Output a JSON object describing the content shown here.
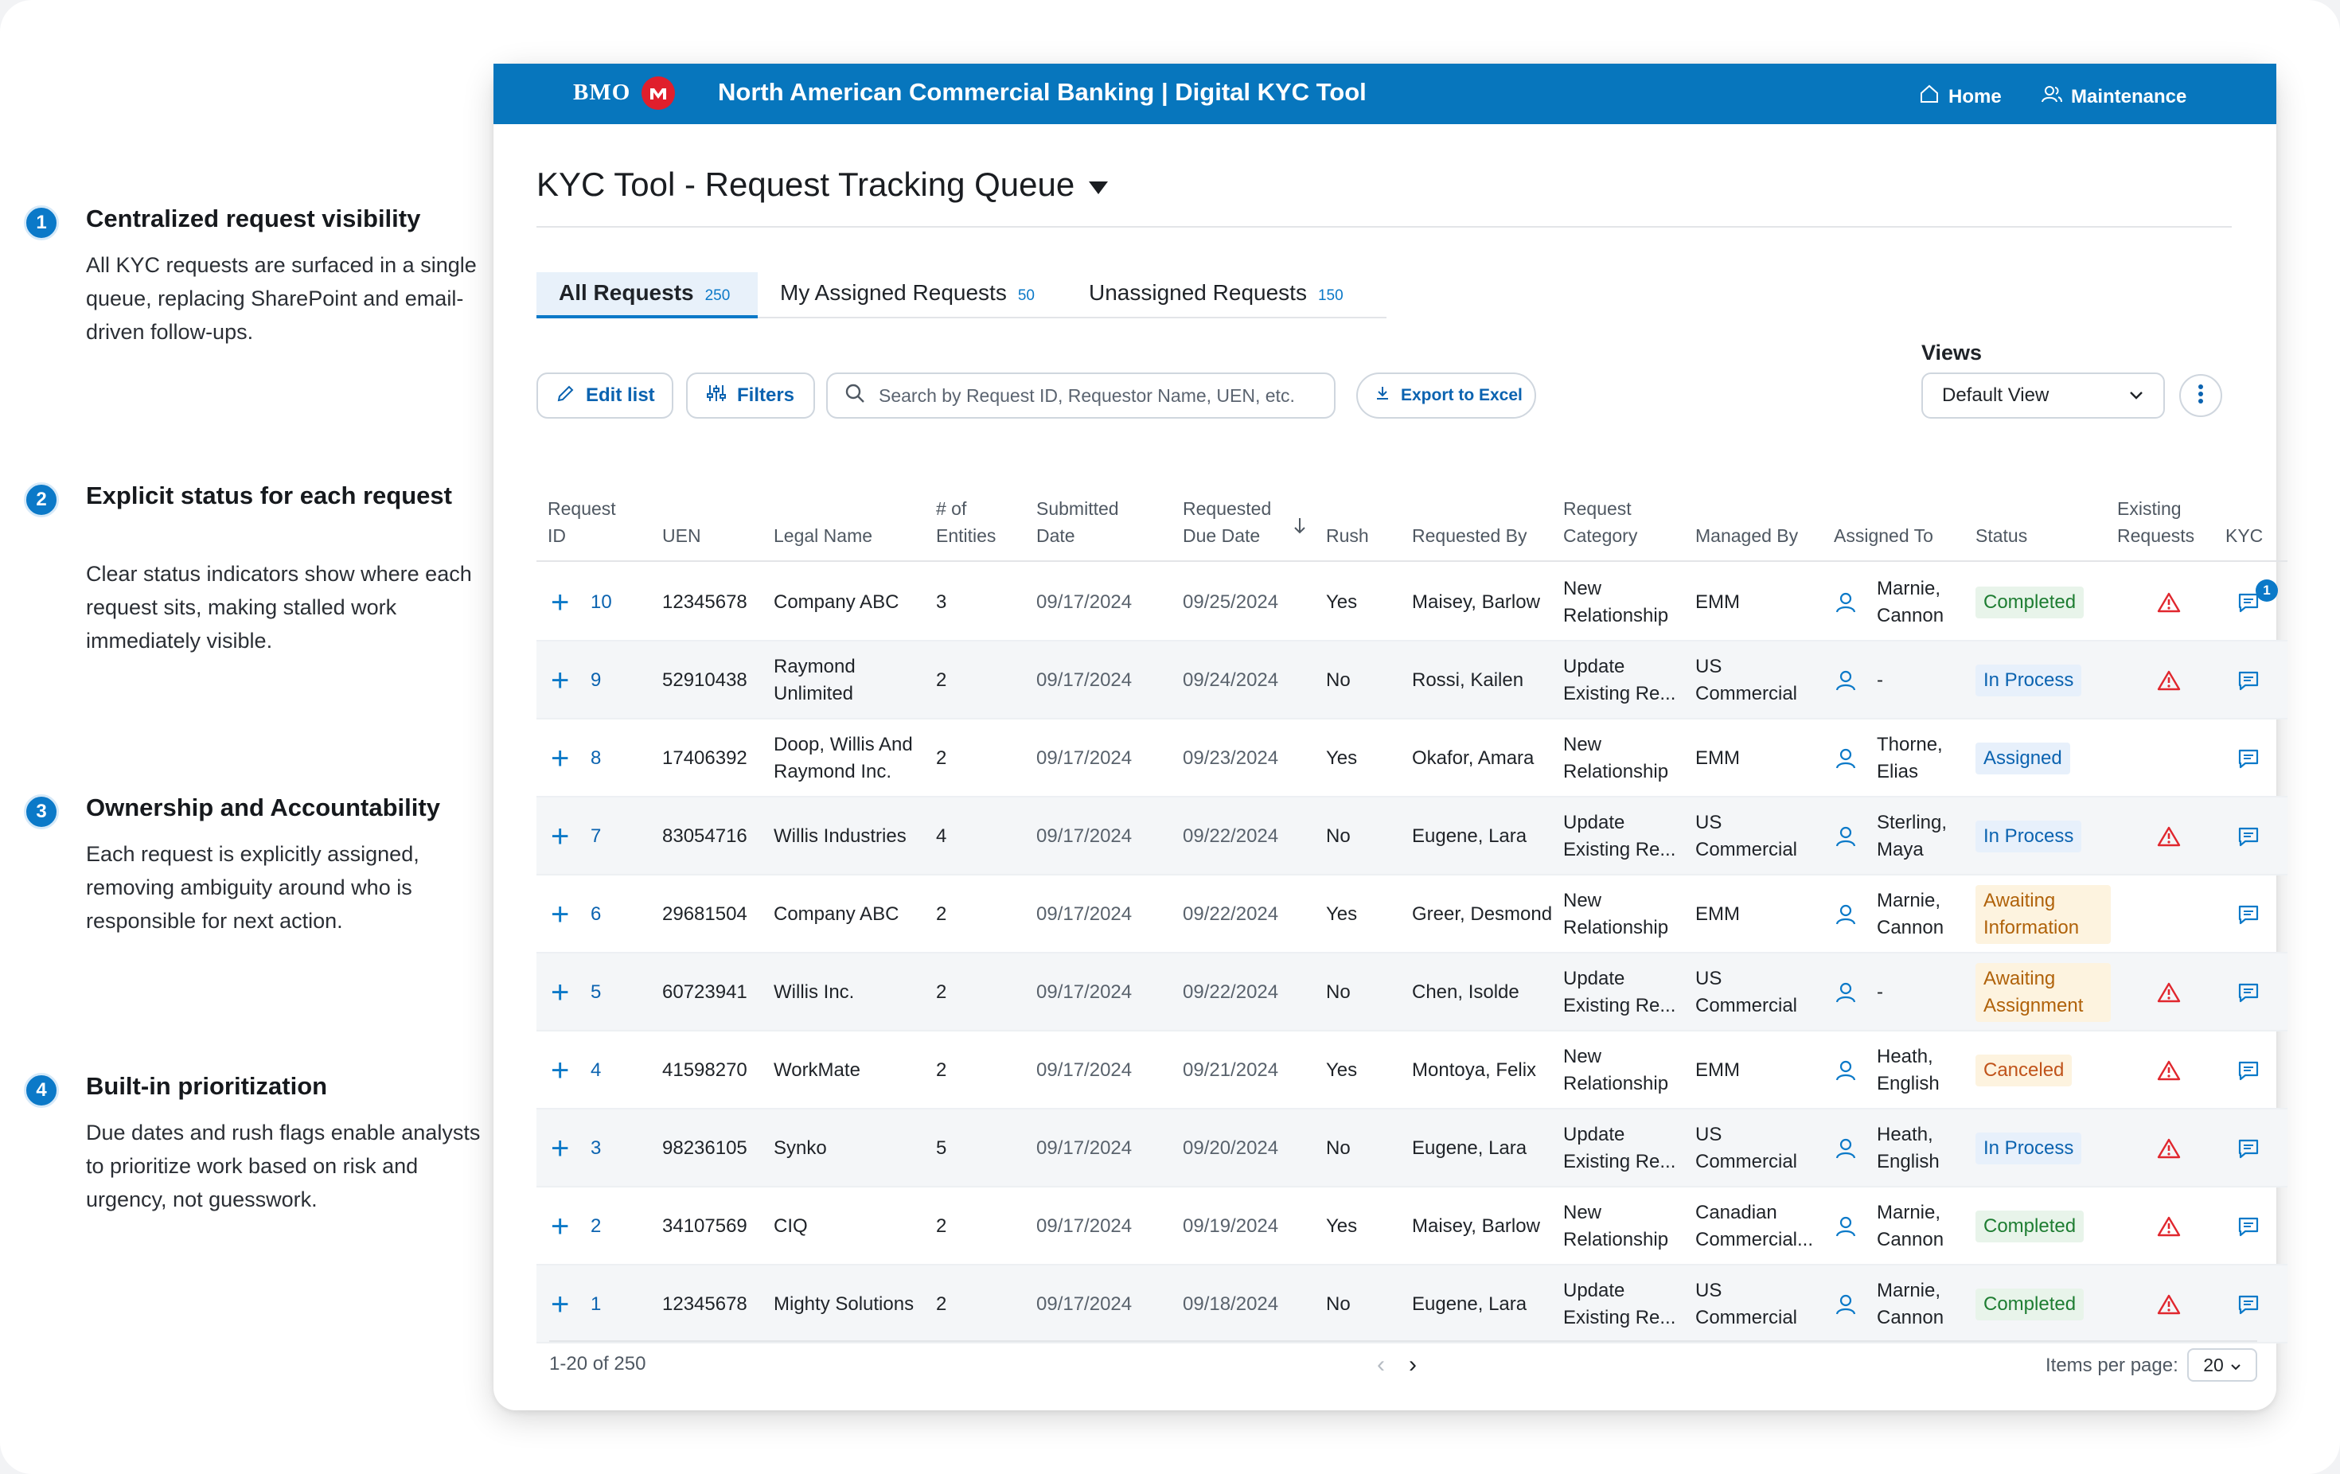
{
  "annotations": [
    {
      "num": "1",
      "title": "Centralized request visibility",
      "body": "All KYC requests are surfaced in a single queue, replacing SharePoint and email-driven follow-ups."
    },
    {
      "num": "2",
      "title": "Explicit status for each request",
      "body": "Clear status indicators show where each request sits, making stalled work immediately visible."
    },
    {
      "num": "3",
      "title": "Ownership and Accountability",
      "body": "Each request is explicitly assigned, removing ambiguity around who is responsible for next action."
    },
    {
      "num": "4",
      "title": "Built-in prioritization",
      "body": "Due dates and rush flags enable analysts to prioritize work based on risk and urgency, not guesswork."
    }
  ],
  "header": {
    "brand": "BMO",
    "app_title": "North American Commercial Banking | Digital KYC Tool",
    "nav": [
      {
        "label": "Home",
        "icon": "home-icon"
      },
      {
        "label": "Maintenance",
        "icon": "users-icon"
      }
    ]
  },
  "page": {
    "title": "KYC Tool - Request Tracking Queue"
  },
  "tabs": [
    {
      "label": "All Requests",
      "count": "250",
      "active": true
    },
    {
      "label": "My Assigned Requests",
      "count": "50",
      "active": false
    },
    {
      "label": "Unassigned Requests",
      "count": "150",
      "active": false
    }
  ],
  "toolbar": {
    "edit_label": "Edit list",
    "filters_label": "Filters",
    "search_placeholder": "Search by Request ID, Requestor Name, UEN, etc.",
    "export_label": "Export to Excel",
    "views_label": "Views",
    "views_value": "Default View"
  },
  "table": {
    "headers": [
      "Request ID",
      "UEN",
      "Legal Name",
      "# of Entities",
      "Submitted Date",
      "Requested Due Date",
      "Rush",
      "Requested By",
      "Request Category",
      "Managed By",
      "Assigned To",
      "Status",
      "Existing Requests",
      "KYC"
    ],
    "rows": [
      {
        "id": "10",
        "uen": "12345678",
        "legal_name": "Company ABC",
        "entities": "3",
        "submitted": "09/17/2024",
        "due": "09/25/2024",
        "rush": "Yes",
        "requested_by": "Maisey, Barlow",
        "category": "New Relationship",
        "managed_by": "EMM",
        "assigned_to": "Marnie, Cannon",
        "status": "Completed",
        "status_type": "completed",
        "existing": true,
        "kyc_badge": "1"
      },
      {
        "id": "9",
        "uen": "52910438",
        "legal_name": "Raymond Unlimited",
        "entities": "2",
        "submitted": "09/17/2024",
        "due": "09/24/2024",
        "rush": "No",
        "requested_by": "Rossi, Kailen",
        "category": "Update Existing Re...",
        "managed_by": "US Commercial",
        "assigned_to": "-",
        "status": "In Process",
        "status_type": "inprocess",
        "existing": true,
        "kyc_badge": ""
      },
      {
        "id": "8",
        "uen": "17406392",
        "legal_name": "Doop, Willis And Raymond Inc.",
        "entities": "2",
        "submitted": "09/17/2024",
        "due": "09/23/2024",
        "rush": "Yes",
        "requested_by": "Okafor, Amara",
        "category": "New Relationship",
        "managed_by": "EMM",
        "assigned_to": "Thorne, Elias",
        "status": "Assigned",
        "status_type": "assigned",
        "existing": false,
        "kyc_badge": ""
      },
      {
        "id": "7",
        "uen": "83054716",
        "legal_name": "Willis Industries",
        "entities": "4",
        "submitted": "09/17/2024",
        "due": "09/22/2024",
        "rush": "No",
        "requested_by": "Eugene, Lara",
        "category": "Update Existing Re...",
        "managed_by": "US Commercial",
        "assigned_to": "Sterling, Maya",
        "status": "In Process",
        "status_type": "inprocess",
        "existing": true,
        "kyc_badge": ""
      },
      {
        "id": "6",
        "uen": "29681504",
        "legal_name": "Company ABC",
        "entities": "2",
        "submitted": "09/17/2024",
        "due": "09/22/2024",
        "rush": "Yes",
        "requested_by": "Greer, Desmond",
        "category": "New Relationship",
        "managed_by": "EMM",
        "assigned_to": "Marnie, Cannon",
        "status": "Awaiting Information",
        "status_type": "awaiting",
        "existing": false,
        "kyc_badge": ""
      },
      {
        "id": "5",
        "uen": "60723941",
        "legal_name": "Willis Inc.",
        "entities": "2",
        "submitted": "09/17/2024",
        "due": "09/22/2024",
        "rush": "No",
        "requested_by": "Chen, Isolde",
        "category": "Update Existing Re...",
        "managed_by": "US Commercial",
        "assigned_to": "-",
        "status": "Awaiting Assignment",
        "status_type": "awaiting",
        "existing": true,
        "kyc_badge": ""
      },
      {
        "id": "4",
        "uen": "41598270",
        "legal_name": "WorkMate",
        "entities": "2",
        "submitted": "09/17/2024",
        "due": "09/21/2024",
        "rush": "Yes",
        "requested_by": "Montoya, Felix",
        "category": "New Relationship",
        "managed_by": "EMM",
        "assigned_to": "Heath, English",
        "status": "Canceled",
        "status_type": "canceled",
        "existing": true,
        "kyc_badge": ""
      },
      {
        "id": "3",
        "uen": "98236105",
        "legal_name": "Synko",
        "entities": "5",
        "submitted": "09/17/2024",
        "due": "09/20/2024",
        "rush": "No",
        "requested_by": "Eugene, Lara",
        "category": "Update Existing Re...",
        "managed_by": "US Commercial",
        "assigned_to": "Heath, English",
        "status": "In Process",
        "status_type": "inprocess",
        "existing": true,
        "kyc_badge": ""
      },
      {
        "id": "2",
        "uen": "34107569",
        "legal_name": "CIQ",
        "entities": "2",
        "submitted": "09/17/2024",
        "due": "09/19/2024",
        "rush": "Yes",
        "requested_by": "Maisey, Barlow",
        "category": "New Relationship",
        "managed_by": "Canadian Commercial...",
        "assigned_to": "Marnie, Cannon",
        "status": "Completed",
        "status_type": "completed",
        "existing": true,
        "kyc_badge": ""
      },
      {
        "id": "1",
        "uen": "12345678",
        "legal_name": "Mighty Solutions",
        "entities": "2",
        "submitted": "09/17/2024",
        "due": "09/18/2024",
        "rush": "No",
        "requested_by": "Eugene, Lara",
        "category": "Update Existing Re...",
        "managed_by": "US Commercial",
        "assigned_to": "Marnie, Cannon",
        "status": "Completed",
        "status_type": "completed",
        "existing": true,
        "kyc_badge": ""
      }
    ]
  },
  "pagination": {
    "range": "1-20 of 250",
    "items_per_page_label": "Items per page:",
    "items_per_page": "20"
  },
  "colors": {
    "brand_blue": "#0776bd",
    "accent": "#0b79c8",
    "alert_red": "#e0272e",
    "completed_green": "#1e7d32",
    "awaiting_orange": "#b0620a"
  }
}
